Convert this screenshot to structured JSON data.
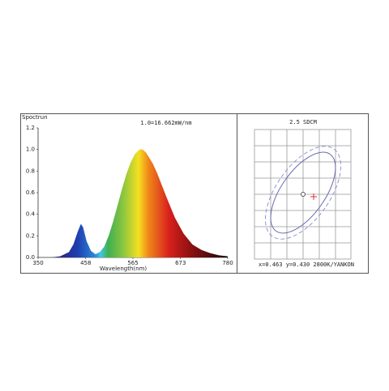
{
  "chart_data": [
    {
      "type": "area",
      "title": "Spoctrun",
      "subtitle": "1.0=16.662mW/nm",
      "x_label": "Wavelength(nm)",
      "x": [
        380,
        400,
        420,
        430,
        440,
        447,
        452,
        460,
        470,
        480,
        490,
        500,
        510,
        520,
        530,
        540,
        550,
        560,
        570,
        580,
        587,
        595,
        610,
        620,
        640,
        660,
        680,
        700,
        720,
        740,
        760,
        780
      ],
      "values": [
        0,
        0.01,
        0.05,
        0.12,
        0.24,
        0.31,
        0.28,
        0.15,
        0.06,
        0.03,
        0.05,
        0.1,
        0.2,
        0.33,
        0.48,
        0.63,
        0.77,
        0.88,
        0.96,
        1.0,
        1.0,
        0.97,
        0.87,
        0.78,
        0.57,
        0.37,
        0.22,
        0.12,
        0.07,
        0.04,
        0.02,
        0.01
      ],
      "xlim": [
        350,
        780
      ],
      "xticks": [
        350,
        458,
        565,
        673,
        780
      ],
      "ylim": [
        0,
        1.2
      ],
      "yticks": [
        {
          "value": 0,
          "label": "0.0"
        },
        0.2,
        0.4,
        0.6,
        0.8,
        {
          "value": 1,
          "label": "1.0"
        },
        1.2
      ]
    },
    {
      "type": "sdcm",
      "title": "2.5 SDCM",
      "annotation": "x=0.463 y=0.430 2800K/YANKON"
    }
  ]
}
